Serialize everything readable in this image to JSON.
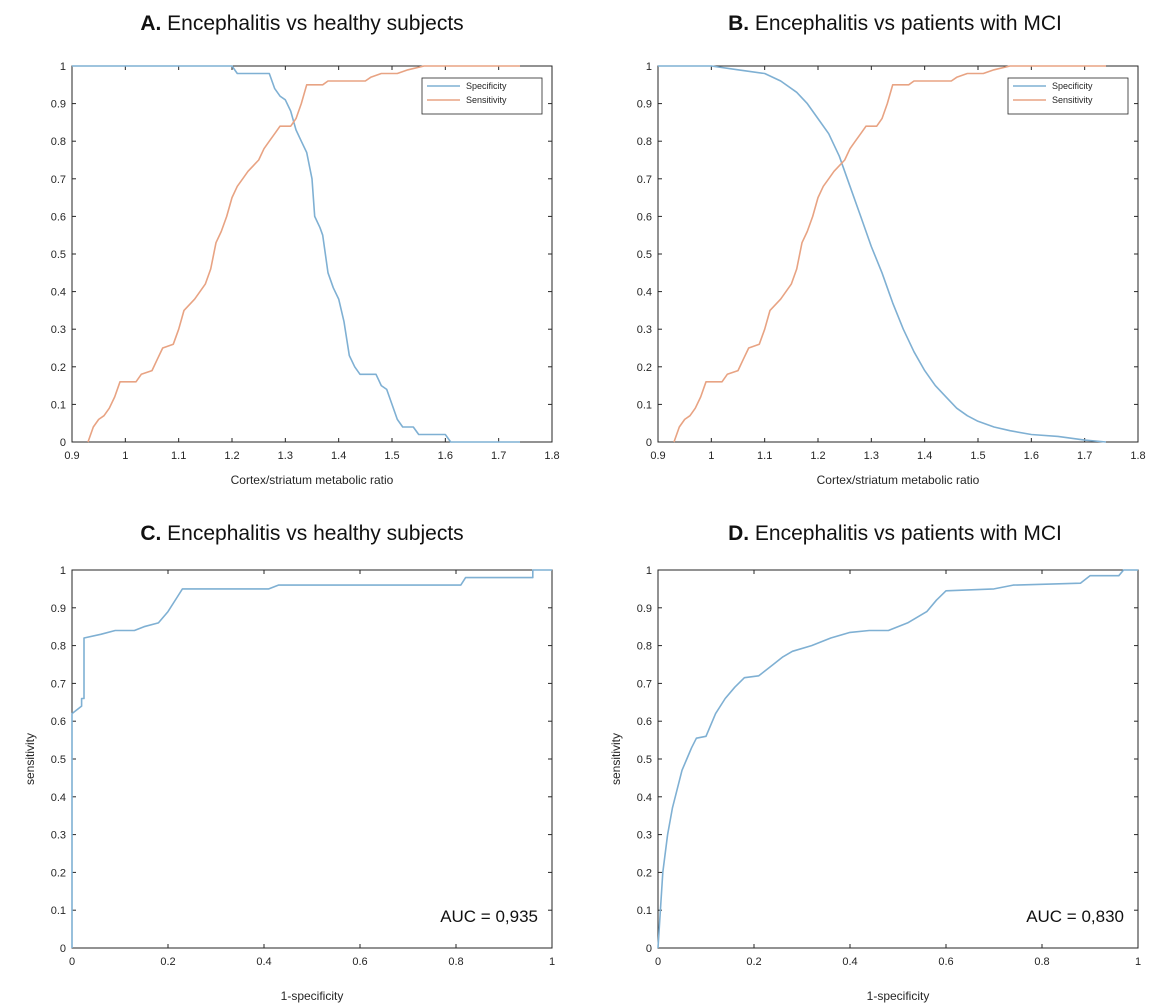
{
  "chart_data": [
    {
      "id": "A",
      "type": "line",
      "title_letter": "A.",
      "title": "Encephalitis vs healthy subjects",
      "xlabel": "Cortex/striatum metabolic ratio",
      "ylabel": "",
      "xlim": [
        0.9,
        1.8
      ],
      "ylim": [
        0,
        1
      ],
      "xticks": [
        0.9,
        1,
        1.1,
        1.2,
        1.3,
        1.4,
        1.5,
        1.6,
        1.7,
        1.8
      ],
      "yticks": [
        0,
        0.1,
        0.2,
        0.3,
        0.4,
        0.5,
        0.6,
        0.7,
        0.8,
        0.9,
        1
      ],
      "grid": false,
      "legend_position": "top-right",
      "annotation": "",
      "series": [
        {
          "name": "Specificity",
          "color": "#7fb0d3",
          "points": [
            [
              0.9,
              1
            ],
            [
              1.2,
              1
            ],
            [
              1.21,
              0.98
            ],
            [
              1.27,
              0.98
            ],
            [
              1.28,
              0.94
            ],
            [
              1.29,
              0.92
            ],
            [
              1.3,
              0.91
            ],
            [
              1.31,
              0.88
            ],
            [
              1.32,
              0.83
            ],
            [
              1.33,
              0.8
            ],
            [
              1.34,
              0.77
            ],
            [
              1.35,
              0.7
            ],
            [
              1.355,
              0.6
            ],
            [
              1.365,
              0.57
            ],
            [
              1.37,
              0.55
            ],
            [
              1.38,
              0.45
            ],
            [
              1.39,
              0.41
            ],
            [
              1.4,
              0.38
            ],
            [
              1.41,
              0.32
            ],
            [
              1.42,
              0.23
            ],
            [
              1.43,
              0.2
            ],
            [
              1.44,
              0.18
            ],
            [
              1.47,
              0.18
            ],
            [
              1.48,
              0.15
            ],
            [
              1.49,
              0.14
            ],
            [
              1.5,
              0.1
            ],
            [
              1.51,
              0.06
            ],
            [
              1.52,
              0.04
            ],
            [
              1.54,
              0.04
            ],
            [
              1.55,
              0.02
            ],
            [
              1.6,
              0.02
            ],
            [
              1.61,
              0
            ],
            [
              1.74,
              0
            ]
          ]
        },
        {
          "name": "Sensitivity",
          "color": "#e8a383",
          "points": [
            [
              0.93,
              0
            ],
            [
              0.94,
              0.04
            ],
            [
              0.95,
              0.06
            ],
            [
              0.96,
              0.07
            ],
            [
              0.97,
              0.09
            ],
            [
              0.98,
              0.12
            ],
            [
              0.99,
              0.16
            ],
            [
              1.02,
              0.16
            ],
            [
              1.03,
              0.18
            ],
            [
              1.05,
              0.19
            ],
            [
              1.06,
              0.22
            ],
            [
              1.07,
              0.25
            ],
            [
              1.09,
              0.26
            ],
            [
              1.1,
              0.3
            ],
            [
              1.11,
              0.35
            ],
            [
              1.13,
              0.38
            ],
            [
              1.15,
              0.42
            ],
            [
              1.16,
              0.46
            ],
            [
              1.17,
              0.53
            ],
            [
              1.18,
              0.56
            ],
            [
              1.19,
              0.6
            ],
            [
              1.2,
              0.65
            ],
            [
              1.21,
              0.68
            ],
            [
              1.22,
              0.7
            ],
            [
              1.23,
              0.72
            ],
            [
              1.25,
              0.75
            ],
            [
              1.26,
              0.78
            ],
            [
              1.27,
              0.8
            ],
            [
              1.28,
              0.82
            ],
            [
              1.29,
              0.84
            ],
            [
              1.31,
              0.84
            ],
            [
              1.32,
              0.86
            ],
            [
              1.33,
              0.9
            ],
            [
              1.34,
              0.95
            ],
            [
              1.37,
              0.95
            ],
            [
              1.38,
              0.96
            ],
            [
              1.45,
              0.96
            ],
            [
              1.46,
              0.97
            ],
            [
              1.48,
              0.98
            ],
            [
              1.51,
              0.98
            ],
            [
              1.53,
              0.99
            ],
            [
              1.56,
              1
            ],
            [
              1.74,
              1
            ]
          ]
        }
      ]
    },
    {
      "id": "B",
      "type": "line",
      "title_letter": "B.",
      "title": "Encephalitis vs patients with MCI",
      "xlabel": "Cortex/striatum metabolic ratio",
      "ylabel": "",
      "xlim": [
        0.9,
        1.8
      ],
      "ylim": [
        0,
        1
      ],
      "xticks": [
        0.9,
        1,
        1.1,
        1.2,
        1.3,
        1.4,
        1.5,
        1.6,
        1.7,
        1.8
      ],
      "yticks": [
        0,
        0.1,
        0.2,
        0.3,
        0.4,
        0.5,
        0.6,
        0.7,
        0.8,
        0.9,
        1
      ],
      "grid": false,
      "legend_position": "top-right",
      "annotation": "",
      "series": [
        {
          "name": "Specificity",
          "color": "#7fb0d3",
          "points": [
            [
              0.9,
              1
            ],
            [
              1,
              1
            ],
            [
              1.05,
              0.99
            ],
            [
              1.1,
              0.98
            ],
            [
              1.13,
              0.96
            ],
            [
              1.16,
              0.93
            ],
            [
              1.18,
              0.9
            ],
            [
              1.2,
              0.86
            ],
            [
              1.22,
              0.82
            ],
            [
              1.24,
              0.76
            ],
            [
              1.26,
              0.68
            ],
            [
              1.28,
              0.6
            ],
            [
              1.3,
              0.52
            ],
            [
              1.32,
              0.45
            ],
            [
              1.34,
              0.37
            ],
            [
              1.36,
              0.3
            ],
            [
              1.38,
              0.24
            ],
            [
              1.4,
              0.19
            ],
            [
              1.42,
              0.15
            ],
            [
              1.44,
              0.12
            ],
            [
              1.46,
              0.09
            ],
            [
              1.48,
              0.07
            ],
            [
              1.5,
              0.055
            ],
            [
              1.53,
              0.04
            ],
            [
              1.56,
              0.03
            ],
            [
              1.6,
              0.02
            ],
            [
              1.65,
              0.015
            ],
            [
              1.7,
              0.005
            ],
            [
              1.74,
              0
            ]
          ]
        },
        {
          "name": "Sensitivity",
          "color": "#e8a383",
          "points": [
            [
              0.93,
              0
            ],
            [
              0.94,
              0.04
            ],
            [
              0.95,
              0.06
            ],
            [
              0.96,
              0.07
            ],
            [
              0.97,
              0.09
            ],
            [
              0.98,
              0.12
            ],
            [
              0.99,
              0.16
            ],
            [
              1.02,
              0.16
            ],
            [
              1.03,
              0.18
            ],
            [
              1.05,
              0.19
            ],
            [
              1.06,
              0.22
            ],
            [
              1.07,
              0.25
            ],
            [
              1.09,
              0.26
            ],
            [
              1.1,
              0.3
            ],
            [
              1.11,
              0.35
            ],
            [
              1.13,
              0.38
            ],
            [
              1.15,
              0.42
            ],
            [
              1.16,
              0.46
            ],
            [
              1.17,
              0.53
            ],
            [
              1.18,
              0.56
            ],
            [
              1.19,
              0.6
            ],
            [
              1.2,
              0.65
            ],
            [
              1.21,
              0.68
            ],
            [
              1.22,
              0.7
            ],
            [
              1.23,
              0.72
            ],
            [
              1.25,
              0.75
            ],
            [
              1.26,
              0.78
            ],
            [
              1.27,
              0.8
            ],
            [
              1.28,
              0.82
            ],
            [
              1.29,
              0.84
            ],
            [
              1.31,
              0.84
            ],
            [
              1.32,
              0.86
            ],
            [
              1.33,
              0.9
            ],
            [
              1.34,
              0.95
            ],
            [
              1.37,
              0.95
            ],
            [
              1.38,
              0.96
            ],
            [
              1.45,
              0.96
            ],
            [
              1.46,
              0.97
            ],
            [
              1.48,
              0.98
            ],
            [
              1.51,
              0.98
            ],
            [
              1.53,
              0.99
            ],
            [
              1.56,
              1
            ],
            [
              1.74,
              1
            ]
          ]
        }
      ]
    },
    {
      "id": "C",
      "type": "line",
      "title_letter": "C.",
      "title": "Encephalitis vs healthy subjects",
      "xlabel": "1-specificity",
      "ylabel": "sensitivity",
      "xlim": [
        0,
        1
      ],
      "ylim": [
        0,
        1
      ],
      "xticks": [
        0,
        0.2,
        0.4,
        0.6,
        0.8,
        1
      ],
      "yticks": [
        0,
        0.1,
        0.2,
        0.3,
        0.4,
        0.5,
        0.6,
        0.7,
        0.8,
        0.9,
        1
      ],
      "grid": false,
      "legend_position": "",
      "annotation": "AUC = 0,935",
      "series": [
        {
          "name": "",
          "color": "#7fb0d3",
          "points": [
            [
              0,
              0
            ],
            [
              0,
              0.62
            ],
            [
              0.02,
              0.64
            ],
            [
              0.02,
              0.66
            ],
            [
              0.025,
              0.66
            ],
            [
              0.025,
              0.82
            ],
            [
              0.06,
              0.83
            ],
            [
              0.09,
              0.84
            ],
            [
              0.13,
              0.84
            ],
            [
              0.15,
              0.85
            ],
            [
              0.18,
              0.86
            ],
            [
              0.2,
              0.89
            ],
            [
              0.22,
              0.93
            ],
            [
              0.23,
              0.95
            ],
            [
              0.41,
              0.95
            ],
            [
              0.43,
              0.96
            ],
            [
              0.81,
              0.96
            ],
            [
              0.82,
              0.98
            ],
            [
              0.96,
              0.98
            ],
            [
              0.96,
              1
            ],
            [
              1,
              1
            ]
          ]
        }
      ]
    },
    {
      "id": "D",
      "type": "line",
      "title_letter": "D.",
      "title": "Encephalitis vs patients with MCI",
      "xlabel": "1-specificity",
      "ylabel": "sensitivity",
      "xlim": [
        0,
        1
      ],
      "ylim": [
        0,
        1
      ],
      "xticks": [
        0,
        0.2,
        0.4,
        0.6,
        0.8,
        1
      ],
      "yticks": [
        0,
        0.1,
        0.2,
        0.3,
        0.4,
        0.5,
        0.6,
        0.7,
        0.8,
        0.9,
        1
      ],
      "grid": false,
      "legend_position": "",
      "annotation": "AUC = 0,830",
      "series": [
        {
          "name": "",
          "color": "#7fb0d3",
          "points": [
            [
              0,
              0
            ],
            [
              0.005,
              0.1
            ],
            [
              0.01,
              0.2
            ],
            [
              0.02,
              0.3
            ],
            [
              0.03,
              0.37
            ],
            [
              0.04,
              0.42
            ],
            [
              0.05,
              0.47
            ],
            [
              0.06,
              0.5
            ],
            [
              0.07,
              0.53
            ],
            [
              0.08,
              0.555
            ],
            [
              0.1,
              0.56
            ],
            [
              0.12,
              0.62
            ],
            [
              0.14,
              0.66
            ],
            [
              0.16,
              0.69
            ],
            [
              0.18,
              0.715
            ],
            [
              0.21,
              0.72
            ],
            [
              0.24,
              0.75
            ],
            [
              0.26,
              0.77
            ],
            [
              0.28,
              0.785
            ],
            [
              0.32,
              0.8
            ],
            [
              0.36,
              0.82
            ],
            [
              0.4,
              0.835
            ],
            [
              0.44,
              0.84
            ],
            [
              0.48,
              0.84
            ],
            [
              0.52,
              0.86
            ],
            [
              0.56,
              0.89
            ],
            [
              0.58,
              0.92
            ],
            [
              0.6,
              0.945
            ],
            [
              0.7,
              0.95
            ],
            [
              0.74,
              0.96
            ],
            [
              0.88,
              0.965
            ],
            [
              0.9,
              0.985
            ],
            [
              0.96,
              0.985
            ],
            [
              0.97,
              1
            ],
            [
              1,
              1
            ]
          ]
        }
      ]
    }
  ]
}
